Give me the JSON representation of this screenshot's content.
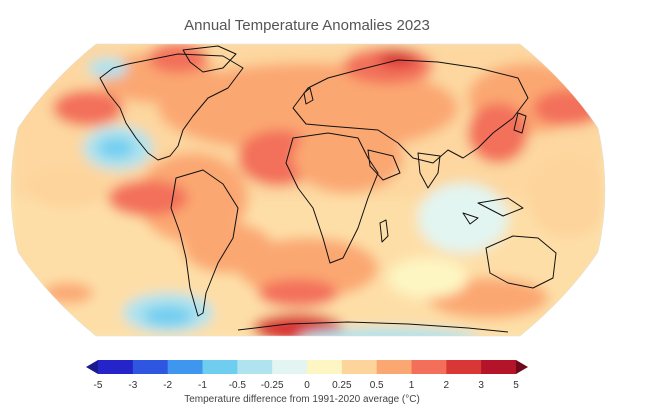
{
  "title": "Annual Temperature Anomalies 2023",
  "legend": {
    "caption": "Temperature difference from 1991-2020 average (°C)",
    "tick_labels": [
      "-5",
      "-3",
      "-2",
      "-1",
      "-0.5",
      "-0.25",
      "0",
      "0.25",
      "0.5",
      "1",
      "2",
      "3",
      "5"
    ],
    "bins": [
      {
        "range": [
          -5,
          -3
        ],
        "color": "#2424c8"
      },
      {
        "range": [
          -3,
          -2
        ],
        "color": "#2f56e0"
      },
      {
        "range": [
          -2,
          -1
        ],
        "color": "#3e96ee"
      },
      {
        "range": [
          -1,
          -0.5
        ],
        "color": "#6fcdf0"
      },
      {
        "range": [
          -0.5,
          -0.25
        ],
        "color": "#aee3ef"
      },
      {
        "range": [
          -0.25,
          0
        ],
        "color": "#e2f5f1"
      },
      {
        "range": [
          0,
          0.25
        ],
        "color": "#fdf6c3"
      },
      {
        "range": [
          0.25,
          0.5
        ],
        "color": "#fdd49b"
      },
      {
        "range": [
          0.5,
          1
        ],
        "color": "#fba772"
      },
      {
        "range": [
          1,
          2
        ],
        "color": "#f36f5a"
      },
      {
        "range": [
          2,
          3
        ],
        "color": "#d93636"
      },
      {
        "range": [
          3,
          5
        ],
        "color": "#b4142a"
      }
    ],
    "under_color": "#1a1a8c",
    "over_color": "#6d0a1c"
  },
  "map": {
    "projection": "robinson",
    "ocean_background_color": "#fdf6c3",
    "coastline_color": "#111111"
  }
}
